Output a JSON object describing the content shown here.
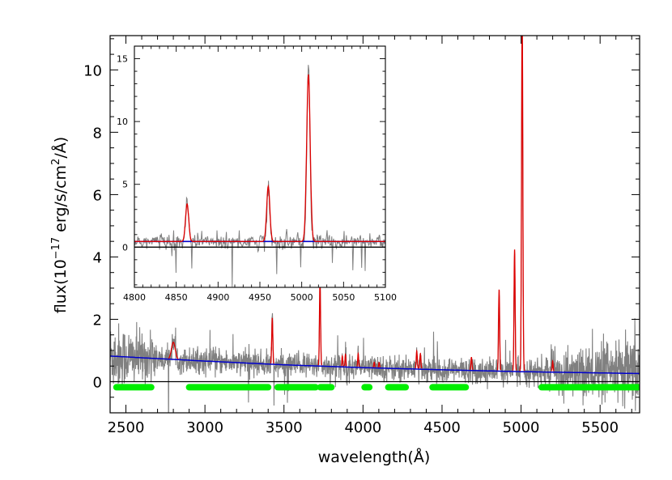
{
  "chart_data": [
    {
      "type": "line",
      "title": "",
      "xlabel": "wavelength(Å)",
      "ylabel_base": "flux(10",
      "ylabel_exp": "−17",
      "ylabel_mid": " erg/s/cm",
      "ylabel_exp2": "2",
      "ylabel_end": "/Å)",
      "xlim": [
        2400,
        5750
      ],
      "ylim": [
        -1.0,
        11.1
      ],
      "xticks": [
        2500,
        3000,
        3500,
        4000,
        4500,
        5000,
        5500
      ],
      "yticks": [
        0,
        2,
        4,
        6,
        8,
        10
      ],
      "grid": false,
      "legend": "none",
      "colors": {
        "data": "#808080",
        "model": "#dd0000",
        "continuum": "#0000cc",
        "zero": "#000000",
        "windows": "#00ee00"
      },
      "continuum": {
        "x": [
          2400,
          3000,
          3500,
          4000,
          4500,
          5000,
          5750
        ],
        "y": [
          0.82,
          0.66,
          0.54,
          0.45,
          0.38,
          0.32,
          0.26
        ]
      },
      "emission_lines": [
        {
          "x": 2800,
          "peak": 0.55,
          "width": 12
        },
        {
          "x": 3426,
          "peak": 1.48,
          "width": 3.5
        },
        {
          "x": 3728,
          "peak": 2.65,
          "width": 3.5
        },
        {
          "x": 3869,
          "peak": 0.35,
          "width": 3
        },
        {
          "x": 3889,
          "peak": 0.4,
          "width": 3
        },
        {
          "x": 3969,
          "peak": 0.25,
          "width": 3
        },
        {
          "x": 3970,
          "peak": 0.2,
          "width": 3
        },
        {
          "x": 4071,
          "peak": 0.18,
          "width": 3
        },
        {
          "x": 4102,
          "peak": 0.18,
          "width": 3
        },
        {
          "x": 4340,
          "peak": 0.58,
          "width": 3.5
        },
        {
          "x": 4363,
          "peak": 0.5,
          "width": 3.5
        },
        {
          "x": 4686,
          "peak": 0.42,
          "width": 3.5
        },
        {
          "x": 4861,
          "peak": 2.62,
          "width": 3.5
        },
        {
          "x": 4959,
          "peak": 3.92,
          "width": 3.5
        },
        {
          "x": 5007,
          "peak": 11.5,
          "width": 4
        },
        {
          "x": 5200,
          "peak": 0.35,
          "width": 3
        }
      ],
      "continuum_windows": [
        [
          2440,
          2660
        ],
        [
          2900,
          3400
        ],
        [
          3460,
          3700
        ],
        [
          3730,
          3800
        ],
        [
          4010,
          4040
        ],
        [
          4160,
          4270
        ],
        [
          4440,
          4650
        ],
        [
          5130,
          5750
        ]
      ],
      "windows_y": -0.18
    },
    {
      "type": "line",
      "title": "",
      "xlim": [
        4800,
        5100
      ],
      "ylim": [
        -3.2,
        16.0
      ],
      "xticks": [
        4800,
        4850,
        4900,
        4950,
        5000,
        5050,
        5100
      ],
      "yticks": [
        0,
        5,
        10,
        15
      ],
      "grid": false,
      "legend": "none",
      "continuum_level": 0.45,
      "zero_level": 0,
      "emission_lines": [
        {
          "x": 4863,
          "peak": 3.0,
          "width": 1.9
        },
        {
          "x": 4960,
          "peak": 4.4,
          "width": 1.9
        },
        {
          "x": 5008,
          "peak": 13.3,
          "width": 2.1
        }
      ],
      "data_peaks": [
        {
          "x": 4863,
          "peak": 3.6
        },
        {
          "x": 4960,
          "peak": 4.4
        },
        {
          "x": 5008,
          "peak": 14.0
        }
      ]
    }
  ]
}
